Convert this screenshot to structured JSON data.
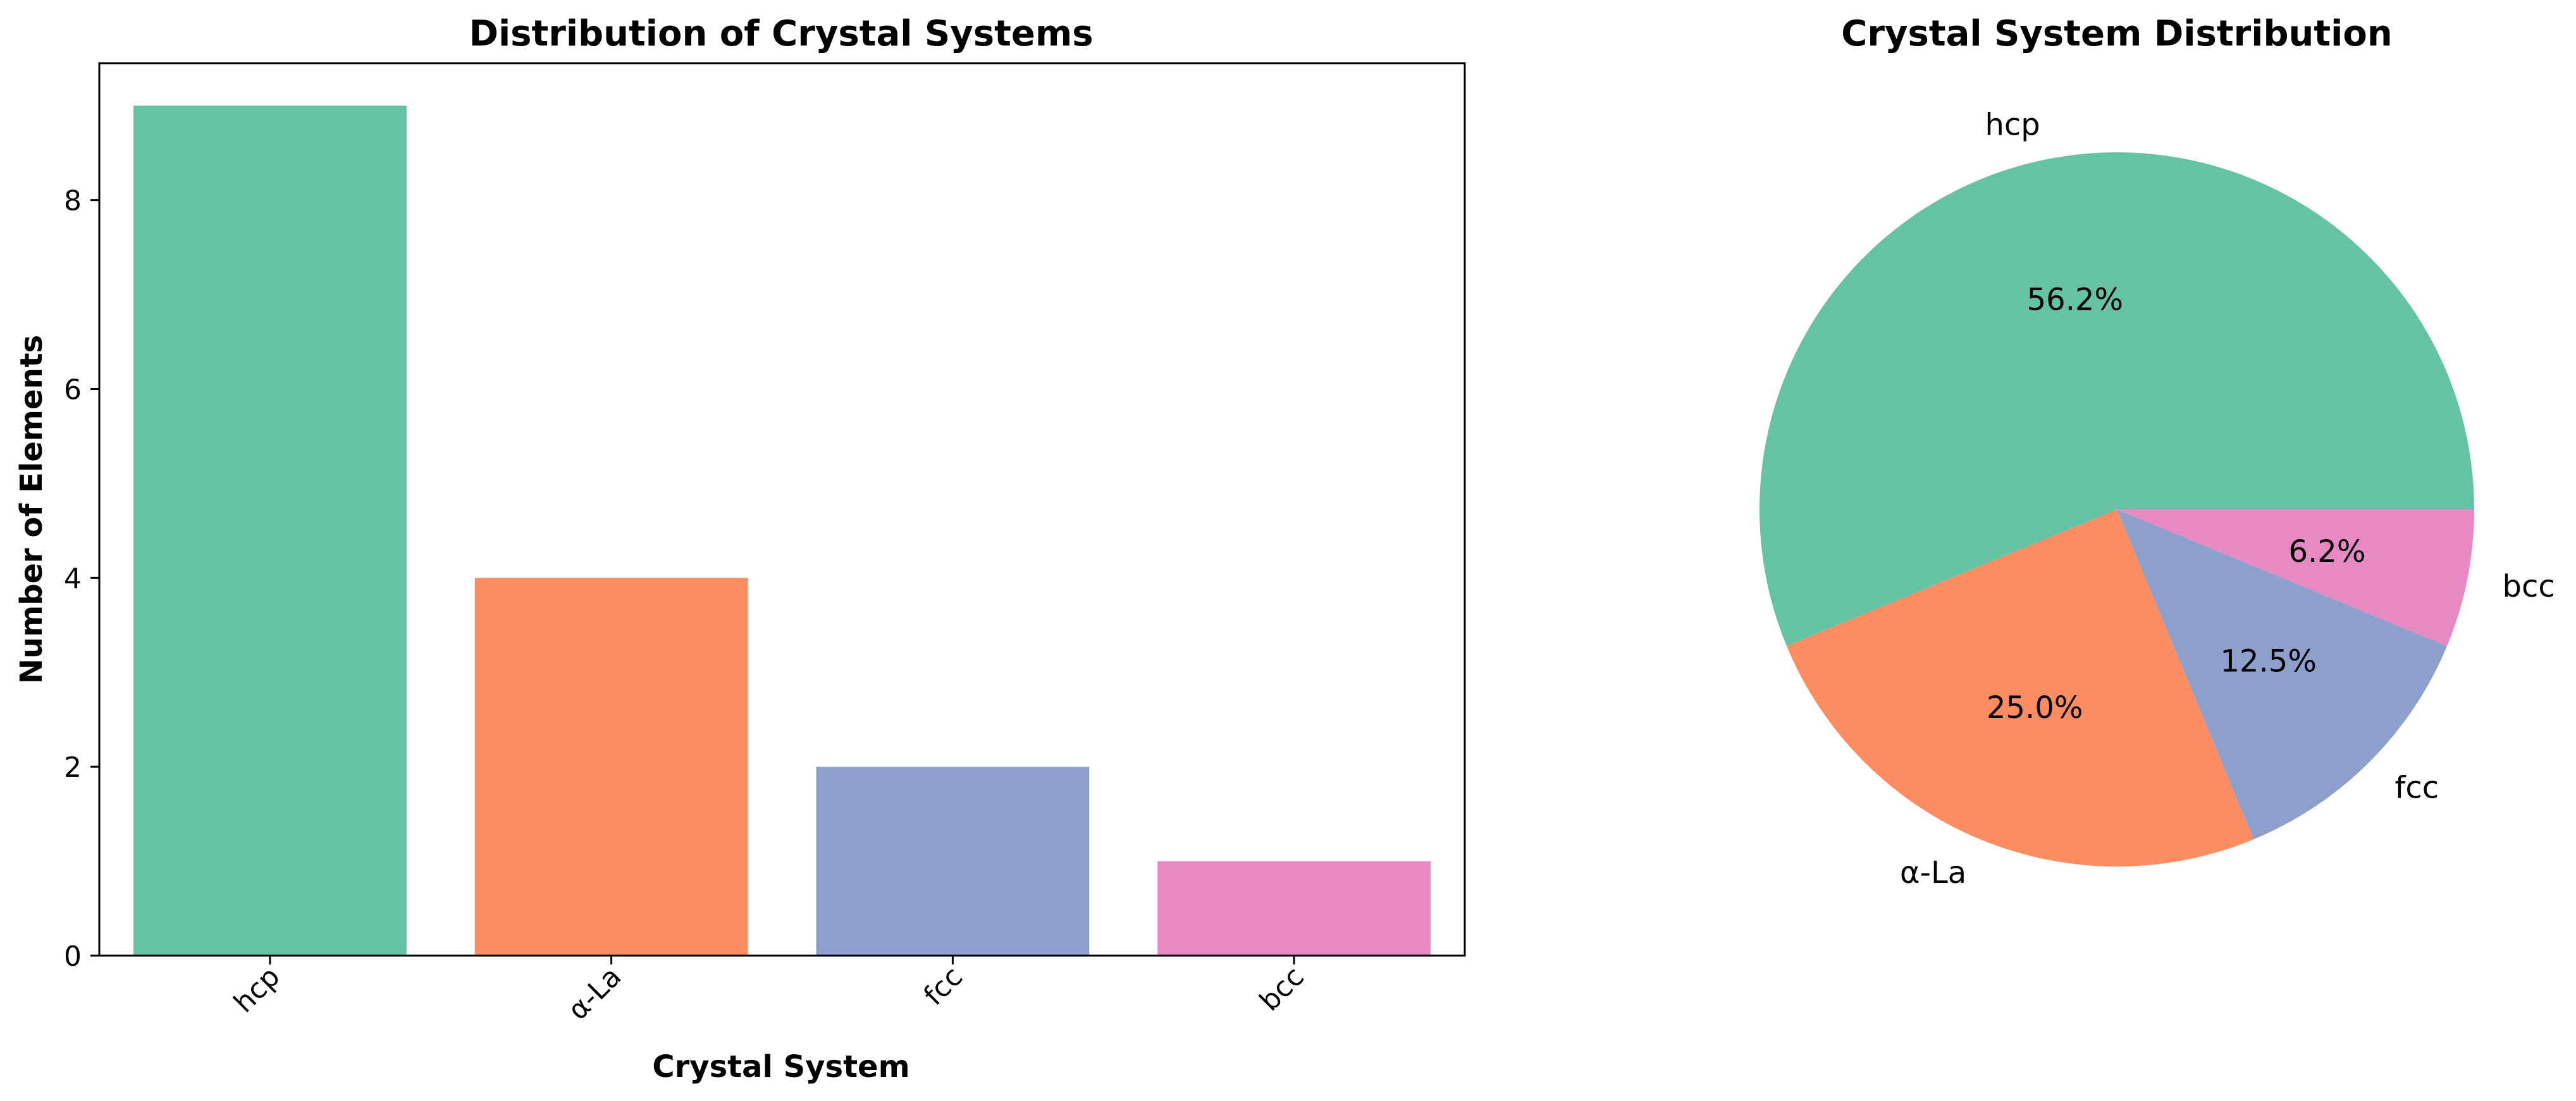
{
  "chart_data": [
    {
      "type": "bar",
      "title": "Distribution of Crystal Systems",
      "xlabel": "Crystal System",
      "ylabel": "Number of Elements",
      "categories": [
        "hcp",
        "α-La",
        "fcc",
        "bcc"
      ],
      "values": [
        9,
        4,
        2,
        1
      ],
      "colors": [
        "#66c2a5",
        "#fc8d62",
        "#8da0cb",
        "#e78ac3"
      ],
      "ylim": [
        0,
        9.45
      ],
      "yticks": [
        0,
        2,
        4,
        6,
        8
      ],
      "xtick_rotation": 45,
      "grid": false
    },
    {
      "type": "pie",
      "title": "Crystal System Distribution",
      "labels": [
        "hcp",
        "α-La",
        "fcc",
        "bcc"
      ],
      "values": [
        9,
        4,
        2,
        1
      ],
      "percent_labels": [
        "56.2%",
        "25.0%",
        "12.5%",
        "6.2%"
      ],
      "colors": [
        "#66c2a5",
        "#fc8d62",
        "#8da0cb",
        "#e78ac3"
      ],
      "start_angle": 0
    }
  ]
}
